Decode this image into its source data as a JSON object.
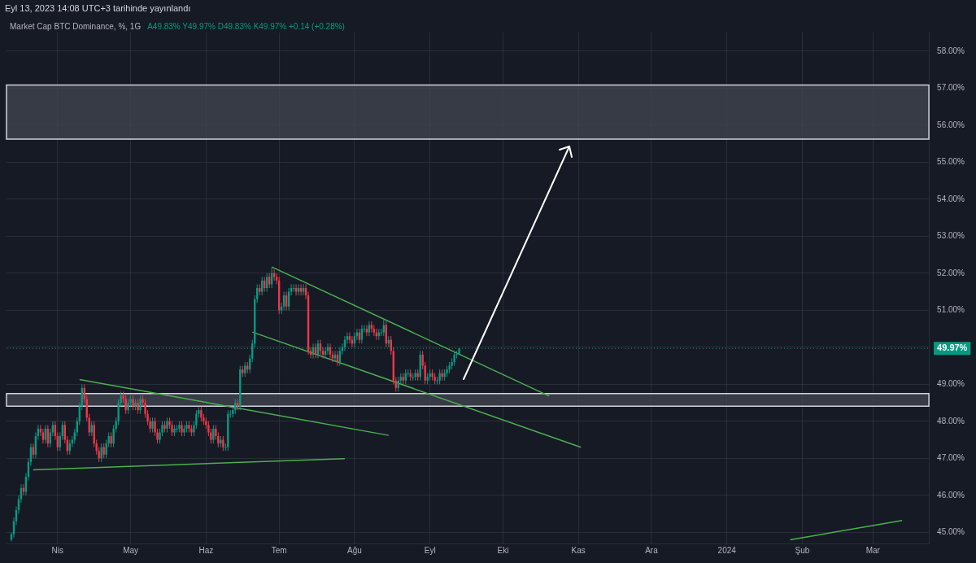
{
  "chart_data": {
    "type": "candlestick",
    "title": "Market Cap BTC Dominance, %, 1G",
    "annotations": [
      "Eyl 13, 2023 14:08 UTC+3 tarihinde yayınlandı",
      "A49.83% Y49.97% D49.83% K49.97% +0.14 (+0.28%)"
    ],
    "x": [
      "2023-03-13",
      "2023-03-14",
      "2023-03-15",
      "2023-03-16",
      "2023-03-17",
      "2023-03-18",
      "2023-03-19",
      "2023-03-20",
      "2023-03-21",
      "2023-03-22",
      "2023-03-23",
      "2023-03-24",
      "2023-03-25",
      "2023-03-26",
      "2023-03-27",
      "2023-03-28",
      "2023-03-29",
      "2023-03-30",
      "2023-03-31",
      "2023-04-01",
      "2023-04-02",
      "2023-04-03",
      "2023-04-04",
      "2023-04-05",
      "2023-04-06",
      "2023-04-07",
      "2023-04-08",
      "2023-04-09",
      "2023-04-10",
      "2023-04-11",
      "2023-04-12",
      "2023-04-13",
      "2023-04-14",
      "2023-04-15",
      "2023-04-16",
      "2023-04-17",
      "2023-04-18",
      "2023-04-19",
      "2023-04-20",
      "2023-04-21",
      "2023-04-22",
      "2023-04-23",
      "2023-04-24",
      "2023-04-25",
      "2023-04-26",
      "2023-04-27",
      "2023-04-28",
      "2023-04-29",
      "2023-04-30",
      "2023-05-01",
      "2023-05-02",
      "2023-05-03",
      "2023-05-04",
      "2023-05-05",
      "2023-05-06",
      "2023-05-07",
      "2023-05-08",
      "2023-05-09",
      "2023-05-10",
      "2023-05-11",
      "2023-05-12",
      "2023-05-13",
      "2023-05-14",
      "2023-05-15",
      "2023-05-16",
      "2023-05-17",
      "2023-05-18",
      "2023-05-19",
      "2023-05-20",
      "2023-05-21",
      "2023-05-22",
      "2023-05-23",
      "2023-05-24",
      "2023-05-25",
      "2023-05-26",
      "2023-05-27",
      "2023-05-28",
      "2023-05-29",
      "2023-05-30",
      "2023-05-31",
      "2023-06-01",
      "2023-06-02",
      "2023-06-03",
      "2023-06-04",
      "2023-06-05",
      "2023-06-06",
      "2023-06-07",
      "2023-06-08",
      "2023-06-09",
      "2023-06-10",
      "2023-06-11",
      "2023-06-12",
      "2023-06-13",
      "2023-06-14",
      "2023-06-15",
      "2023-06-16",
      "2023-06-17",
      "2023-06-18",
      "2023-06-19",
      "2023-06-20",
      "2023-06-21",
      "2023-06-22",
      "2023-06-23",
      "2023-06-24",
      "2023-06-25",
      "2023-06-26",
      "2023-06-27",
      "2023-06-28",
      "2023-06-29",
      "2023-06-30",
      "2023-07-01",
      "2023-07-02",
      "2023-07-03",
      "2023-07-04",
      "2023-07-05",
      "2023-07-06",
      "2023-07-07",
      "2023-07-08",
      "2023-07-09",
      "2023-07-10",
      "2023-07-11",
      "2023-07-12",
      "2023-07-13",
      "2023-07-14",
      "2023-07-15",
      "2023-07-16",
      "2023-07-17",
      "2023-07-18",
      "2023-07-19",
      "2023-07-20",
      "2023-07-21",
      "2023-07-22",
      "2023-07-23",
      "2023-07-24",
      "2023-07-25",
      "2023-07-26",
      "2023-07-27",
      "2023-07-28",
      "2023-07-29",
      "2023-07-30",
      "2023-07-31",
      "2023-08-01",
      "2023-08-02",
      "2023-08-03",
      "2023-08-04",
      "2023-08-05",
      "2023-08-06",
      "2023-08-07",
      "2023-08-08",
      "2023-08-09",
      "2023-08-10",
      "2023-08-11",
      "2023-08-12",
      "2023-08-13",
      "2023-08-14",
      "2023-08-15",
      "2023-08-16",
      "2023-08-17",
      "2023-08-18",
      "2023-08-19",
      "2023-08-20",
      "2023-08-21",
      "2023-08-22",
      "2023-08-23",
      "2023-08-24",
      "2023-08-25",
      "2023-08-26",
      "2023-08-27",
      "2023-08-28",
      "2023-08-29",
      "2023-08-30",
      "2023-08-31",
      "2023-09-01",
      "2023-09-02",
      "2023-09-03",
      "2023-09-04",
      "2023-09-05",
      "2023-09-06",
      "2023-09-07",
      "2023-09-08",
      "2023-09-09",
      "2023-09-10",
      "2023-09-11",
      "2023-09-12",
      "2023-09-13"
    ],
    "ohlc": [
      [
        44.8,
        45.0,
        44.75,
        44.95
      ],
      [
        44.95,
        45.4,
        44.85,
        45.3
      ],
      [
        45.3,
        45.7,
        45.2,
        45.6
      ],
      [
        45.6,
        46.0,
        45.5,
        45.9
      ],
      [
        45.9,
        46.3,
        45.8,
        46.2
      ],
      [
        46.2,
        46.3,
        46.0,
        46.1
      ],
      [
        46.1,
        46.6,
        46.0,
        46.5
      ],
      [
        46.5,
        47.0,
        46.4,
        46.9
      ],
      [
        46.9,
        47.4,
        46.8,
        47.3
      ],
      [
        47.3,
        47.4,
        47.0,
        47.1
      ],
      [
        47.1,
        47.7,
        47.0,
        47.6
      ],
      [
        47.6,
        47.9,
        47.5,
        47.8
      ],
      [
        47.8,
        47.9,
        47.6,
        47.7
      ],
      [
        47.7,
        47.8,
        47.4,
        47.5
      ],
      [
        47.5,
        47.9,
        47.4,
        47.8
      ],
      [
        47.8,
        47.9,
        47.3,
        47.4
      ],
      [
        47.4,
        47.8,
        47.3,
        47.7
      ],
      [
        47.7,
        48.0,
        47.6,
        47.9
      ],
      [
        47.9,
        48.0,
        47.5,
        47.6
      ],
      [
        47.6,
        47.7,
        47.2,
        47.3
      ],
      [
        47.3,
        47.7,
        47.2,
        47.6
      ],
      [
        47.6,
        48.0,
        47.5,
        47.9
      ],
      [
        47.9,
        48.0,
        47.4,
        47.5
      ],
      [
        47.5,
        47.6,
        47.1,
        47.2
      ],
      [
        47.2,
        47.5,
        47.1,
        47.4
      ],
      [
        47.4,
        47.6,
        47.3,
        47.5
      ],
      [
        47.5,
        47.8,
        47.4,
        47.7
      ],
      [
        47.7,
        48.1,
        47.6,
        48.0
      ],
      [
        48.0,
        48.5,
        47.9,
        48.4
      ],
      [
        48.4,
        49.0,
        48.3,
        48.9
      ],
      [
        48.9,
        49.0,
        48.5,
        48.6
      ],
      [
        48.6,
        48.7,
        48.0,
        48.1
      ],
      [
        48.1,
        48.2,
        47.6,
        47.7
      ],
      [
        47.7,
        48.0,
        47.6,
        47.9
      ],
      [
        47.9,
        48.0,
        47.3,
        47.4
      ],
      [
        47.4,
        47.5,
        47.1,
        47.2
      ],
      [
        47.2,
        47.3,
        46.9,
        47.0
      ],
      [
        47.0,
        47.4,
        46.9,
        47.3
      ],
      [
        47.3,
        47.4,
        47.0,
        47.1
      ],
      [
        47.1,
        47.5,
        47.0,
        47.4
      ],
      [
        47.4,
        47.7,
        47.3,
        47.6
      ],
      [
        47.6,
        47.7,
        47.3,
        47.4
      ],
      [
        47.4,
        47.9,
        47.3,
        47.8
      ],
      [
        47.8,
        48.1,
        47.7,
        48.0
      ],
      [
        48.0,
        48.6,
        47.9,
        48.5
      ],
      [
        48.5,
        48.8,
        48.4,
        48.7
      ],
      [
        48.7,
        48.8,
        48.5,
        48.6
      ],
      [
        48.6,
        48.7,
        48.2,
        48.3
      ],
      [
        48.3,
        48.6,
        48.2,
        48.5
      ],
      [
        48.5,
        48.7,
        48.4,
        48.6
      ],
      [
        48.6,
        48.7,
        48.3,
        48.4
      ],
      [
        48.4,
        48.6,
        48.3,
        48.5
      ],
      [
        48.5,
        48.6,
        48.2,
        48.3
      ],
      [
        48.3,
        48.7,
        48.2,
        48.6
      ],
      [
        48.6,
        48.7,
        48.4,
        48.5
      ],
      [
        48.5,
        48.6,
        48.1,
        48.2
      ],
      [
        48.2,
        48.3,
        47.9,
        48.0
      ],
      [
        48.0,
        48.1,
        47.7,
        47.8
      ],
      [
        47.8,
        48.1,
        47.7,
        48.0
      ],
      [
        48.0,
        48.1,
        47.6,
        47.7
      ],
      [
        47.7,
        47.8,
        47.4,
        47.5
      ],
      [
        47.5,
        47.8,
        47.4,
        47.7
      ],
      [
        47.7,
        48.0,
        47.6,
        47.9
      ],
      [
        47.9,
        48.0,
        47.7,
        47.8
      ],
      [
        47.8,
        48.1,
        47.7,
        48.0
      ],
      [
        48.0,
        48.1,
        47.8,
        47.9
      ],
      [
        47.9,
        48.0,
        47.6,
        47.7
      ],
      [
        47.7,
        47.9,
        47.6,
        47.8
      ],
      [
        47.8,
        47.9,
        47.7,
        47.8
      ],
      [
        47.8,
        48.0,
        47.7,
        47.9
      ],
      [
        47.9,
        48.0,
        47.6,
        47.7
      ],
      [
        47.7,
        47.9,
        47.6,
        47.8
      ],
      [
        47.8,
        48.0,
        47.7,
        47.9
      ],
      [
        47.9,
        48.0,
        47.7,
        47.8
      ],
      [
        47.8,
        47.9,
        47.6,
        47.7
      ],
      [
        47.7,
        48.0,
        47.6,
        47.9
      ],
      [
        47.9,
        48.3,
        47.8,
        48.2
      ],
      [
        48.2,
        48.4,
        48.1,
        48.3
      ],
      [
        48.3,
        48.4,
        48.0,
        48.1
      ],
      [
        48.1,
        48.2,
        47.9,
        48.0
      ],
      [
        48.0,
        48.1,
        47.8,
        47.9
      ],
      [
        47.9,
        48.0,
        47.6,
        47.7
      ],
      [
        47.7,
        47.8,
        47.4,
        47.5
      ],
      [
        47.5,
        47.9,
        47.4,
        47.8
      ],
      [
        47.8,
        47.9,
        47.5,
        47.6
      ],
      [
        47.6,
        47.7,
        47.3,
        47.4
      ],
      [
        47.4,
        47.6,
        47.3,
        47.5
      ],
      [
        47.5,
        47.6,
        47.2,
        47.3
      ],
      [
        47.3,
        47.4,
        47.2,
        47.3
      ],
      [
        47.3,
        48.3,
        47.2,
        48.2
      ],
      [
        48.2,
        48.3,
        48.1,
        48.2
      ],
      [
        48.2,
        48.4,
        48.1,
        48.3
      ],
      [
        48.3,
        48.6,
        48.2,
        48.5
      ],
      [
        48.5,
        48.6,
        48.3,
        48.4
      ],
      [
        48.4,
        49.5,
        48.3,
        49.4
      ],
      [
        49.4,
        49.5,
        49.2,
        49.3
      ],
      [
        49.3,
        49.6,
        49.2,
        49.5
      ],
      [
        49.5,
        49.6,
        49.3,
        49.4
      ],
      [
        49.4,
        49.8,
        49.3,
        49.7
      ],
      [
        49.7,
        50.2,
        49.6,
        50.1
      ],
      [
        50.1,
        51.4,
        50.0,
        51.3
      ],
      [
        51.3,
        51.7,
        51.2,
        51.6
      ],
      [
        51.6,
        51.7,
        51.4,
        51.5
      ],
      [
        51.5,
        51.9,
        51.4,
        51.8
      ],
      [
        51.8,
        51.9,
        51.5,
        51.6
      ],
      [
        51.6,
        52.0,
        51.5,
        51.9
      ],
      [
        51.9,
        52.0,
        51.6,
        51.7
      ],
      [
        51.7,
        52.15,
        51.6,
        52.0
      ],
      [
        52.0,
        52.1,
        51.8,
        51.9
      ],
      [
        51.9,
        52.0,
        51.7,
        51.8
      ],
      [
        51.8,
        51.9,
        50.9,
        51.0
      ],
      [
        51.0,
        51.2,
        50.9,
        51.1
      ],
      [
        51.1,
        51.5,
        51.0,
        51.4
      ],
      [
        51.4,
        51.5,
        51.0,
        51.1
      ],
      [
        51.1,
        51.6,
        51.0,
        51.5
      ],
      [
        51.5,
        51.7,
        51.4,
        51.6
      ],
      [
        51.6,
        51.7,
        51.5,
        51.6
      ],
      [
        51.6,
        51.7,
        51.4,
        51.5
      ],
      [
        51.5,
        51.7,
        51.4,
        51.6
      ],
      [
        51.6,
        51.7,
        51.4,
        51.5
      ],
      [
        51.5,
        51.7,
        51.4,
        51.6
      ],
      [
        51.6,
        51.7,
        51.3,
        51.4
      ],
      [
        51.4,
        51.5,
        49.8,
        49.9
      ],
      [
        49.9,
        50.0,
        49.7,
        49.8
      ],
      [
        49.8,
        50.1,
        49.7,
        50.0
      ],
      [
        50.0,
        50.1,
        49.7,
        49.8
      ],
      [
        49.8,
        50.2,
        49.7,
        50.1
      ],
      [
        50.1,
        50.2,
        49.8,
        49.9
      ],
      [
        49.9,
        50.0,
        49.7,
        49.8
      ],
      [
        49.8,
        50.0,
        49.7,
        49.9
      ],
      [
        49.9,
        50.1,
        49.8,
        50.0
      ],
      [
        50.0,
        50.1,
        49.7,
        49.8
      ],
      [
        49.8,
        49.9,
        49.6,
        49.7
      ],
      [
        49.7,
        49.9,
        49.6,
        49.8
      ],
      [
        49.8,
        49.9,
        49.5,
        49.6
      ],
      [
        49.6,
        50.0,
        49.5,
        49.9
      ],
      [
        49.9,
        50.1,
        49.8,
        50.0
      ],
      [
        50.0,
        50.3,
        49.9,
        50.2
      ],
      [
        50.2,
        50.4,
        50.1,
        50.3
      ],
      [
        50.3,
        50.4,
        50.1,
        50.2
      ],
      [
        50.2,
        50.3,
        50.0,
        50.1
      ],
      [
        50.1,
        50.4,
        50.0,
        50.3
      ],
      [
        50.3,
        50.5,
        50.2,
        50.4
      ],
      [
        50.4,
        50.5,
        50.1,
        50.2
      ],
      [
        50.2,
        50.6,
        50.1,
        50.5
      ],
      [
        50.5,
        50.6,
        50.4,
        50.5
      ],
      [
        50.5,
        50.6,
        50.3,
        50.4
      ],
      [
        50.4,
        50.7,
        50.3,
        50.6
      ],
      [
        50.6,
        50.7,
        50.4,
        50.5
      ],
      [
        50.5,
        50.6,
        50.3,
        50.4
      ],
      [
        50.4,
        50.5,
        50.2,
        50.3
      ],
      [
        50.3,
        50.5,
        50.2,
        50.4
      ],
      [
        50.4,
        50.5,
        50.3,
        50.4
      ],
      [
        50.4,
        50.75,
        50.3,
        50.6
      ],
      [
        50.6,
        50.7,
        50.0,
        50.1
      ],
      [
        50.1,
        50.3,
        50.0,
        50.2
      ],
      [
        50.2,
        50.3,
        49.8,
        49.9
      ],
      [
        49.9,
        50.0,
        49.0,
        49.1
      ],
      [
        49.1,
        49.2,
        48.8,
        48.9
      ],
      [
        48.9,
        49.2,
        48.8,
        49.1
      ],
      [
        49.1,
        49.3,
        49.0,
        49.2
      ],
      [
        49.2,
        49.3,
        49.0,
        49.1
      ],
      [
        49.1,
        49.4,
        49.0,
        49.3
      ],
      [
        49.3,
        49.4,
        49.2,
        49.3
      ],
      [
        49.3,
        49.4,
        49.1,
        49.2
      ],
      [
        49.2,
        49.3,
        49.1,
        49.2
      ],
      [
        49.2,
        49.4,
        49.1,
        49.3
      ],
      [
        49.3,
        49.4,
        49.1,
        49.2
      ],
      [
        49.2,
        49.9,
        49.1,
        49.8
      ],
      [
        49.8,
        49.9,
        49.4,
        49.5
      ],
      [
        49.5,
        49.6,
        49.0,
        49.1
      ],
      [
        49.1,
        49.3,
        49.0,
        49.2
      ],
      [
        49.2,
        49.4,
        49.1,
        49.3
      ],
      [
        49.3,
        49.4,
        49.1,
        49.2
      ],
      [
        49.2,
        49.3,
        49.0,
        49.1
      ],
      [
        49.1,
        49.2,
        49.0,
        49.1
      ],
      [
        49.1,
        49.4,
        49.0,
        49.3
      ],
      [
        49.3,
        49.4,
        49.1,
        49.2
      ],
      [
        49.2,
        49.4,
        49.1,
        49.3
      ],
      [
        49.3,
        49.5,
        49.2,
        49.4
      ],
      [
        49.4,
        49.6,
        49.3,
        49.5
      ],
      [
        49.5,
        49.7,
        49.4,
        49.6
      ],
      [
        49.6,
        49.9,
        49.5,
        49.8
      ],
      [
        49.8,
        49.9,
        49.7,
        49.83
      ],
      [
        49.83,
        49.97,
        49.8,
        49.97
      ]
    ],
    "series": [
      {
        "type": "line",
        "color": "#4caf50",
        "x": [
          "2023-03-22",
          "2023-07-28"
        ],
        "values": [
          46.69,
          46.99
        ]
      },
      {
        "type": "line",
        "color": "#4caf50",
        "x": [
          "2023-04-10",
          "2023-08-15"
        ],
        "values": [
          49.13,
          47.62
        ]
      },
      {
        "type": "line",
        "color": "#4caf50",
        "x": [
          "2023-06-20",
          "2023-11-02"
        ],
        "values": [
          50.41,
          47.3
        ]
      },
      {
        "type": "line",
        "color": "#4caf50",
        "x": [
          "2023-06-28",
          "2023-10-20"
        ],
        "values": [
          52.17,
          48.68
        ]
      },
      {
        "type": "line",
        "color": "#4caf50",
        "x": [
          "2024-01-27",
          "2024-03-13"
        ],
        "values": [
          44.8,
          45.32
        ]
      }
    ],
    "bands": [
      {
        "axis": "y",
        "from": 55.62,
        "to": 57.08,
        "color": "#40434d"
      },
      {
        "axis": "y",
        "from": 48.41,
        "to": 48.75,
        "color": "#40434d"
      }
    ],
    "ref_lines": [
      {
        "axis": "y",
        "value": 49.97,
        "label": "49.97%",
        "color": "#089981",
        "line_style": "dotted"
      }
    ],
    "xlim": [
      "2023-03-11",
      "2024-03-24"
    ],
    "xticks": [
      {
        "value": "2023-04-01",
        "label": "Nis"
      },
      {
        "value": "2023-05-01",
        "label": "May"
      },
      {
        "value": "2023-06-01",
        "label": "Haz"
      },
      {
        "value": "2023-07-01",
        "label": "Tem"
      },
      {
        "value": "2023-08-01",
        "label": "Ağu"
      },
      {
        "value": "2023-09-01",
        "label": "Eyl"
      },
      {
        "value": "2023-10-01",
        "label": "Eki"
      },
      {
        "value": "2023-11-01",
        "label": "Kas"
      },
      {
        "value": "2023-12-01",
        "label": "Ara"
      },
      {
        "value": "2024-01-01",
        "label": "2024"
      },
      {
        "value": "2024-02-01",
        "label": "Şub"
      },
      {
        "value": "2024-03-01",
        "label": "Mar"
      }
    ],
    "ylim": [
      44.7,
      58.5
    ],
    "yticks": [
      {
        "value": 45,
        "label": "45.00%"
      },
      {
        "value": 46,
        "label": "46.00%"
      },
      {
        "value": 47,
        "label": "47.00%"
      },
      {
        "value": 48,
        "label": "48.00%"
      },
      {
        "value": 49,
        "label": "49.00%"
      },
      {
        "value": 50,
        "label": null
      },
      {
        "value": 51,
        "label": "51.00%"
      },
      {
        "value": 52,
        "label": "52.00%"
      },
      {
        "value": 53,
        "label": "53.00%"
      },
      {
        "value": 54,
        "label": "54.00%"
      },
      {
        "value": 55,
        "label": "55.00%"
      },
      {
        "value": 56,
        "label": "56.00%"
      },
      {
        "value": 57,
        "label": "57.00%"
      },
      {
        "value": 58,
        "label": "58.00%"
      }
    ],
    "grid": true,
    "marker": "none"
  }
}
